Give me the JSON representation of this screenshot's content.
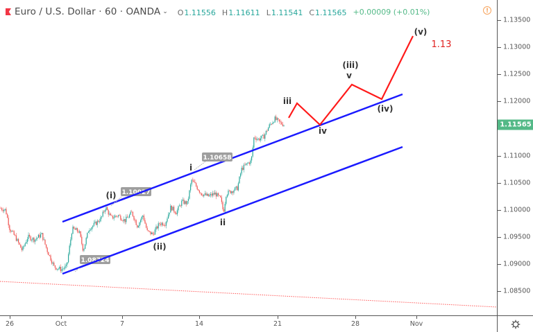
{
  "header": {
    "symbol_title": "Euro / U.S. Dollar · 60 · OANDA",
    "dropdown_icon": "chevron-down-icon",
    "ohlc": [
      {
        "key": "O",
        "value": "1.11556"
      },
      {
        "key": "H",
        "value": "1.11611"
      },
      {
        "key": "L",
        "value": "1.11541"
      },
      {
        "key": "C",
        "value": "1.11565"
      }
    ],
    "change": "+0.00009 (+0.01%)",
    "warning_icon": "alert-circle-icon"
  },
  "colors": {
    "up": "#26a69a",
    "down": "#ef5350",
    "channel": "#1a1aff",
    "projection": "#ff1a1a",
    "last_price_bg": "#53b987",
    "target_text": "#e0201f"
  },
  "price_axis": {
    "labels": [
      "1.13500",
      "1.13000",
      "1.12500",
      "1.12000",
      "1.11500",
      "1.11000",
      "1.10500",
      "1.10000",
      "1.09500",
      "1.09000",
      "1.08500"
    ],
    "last_price": "1.11565"
  },
  "time_axis": {
    "labels": [
      "26",
      "Oct",
      "7",
      "14",
      "21",
      "28",
      "Nov"
    ],
    "settings_icon": "gear-icon"
  },
  "annotations": {
    "price_tags": [
      "1.10027",
      "1.08724",
      "1.10658"
    ],
    "wave_labels": [
      "(i)",
      "(ii)",
      "i",
      "ii",
      "iii",
      "iv",
      "(iii)",
      "v",
      "(iv)",
      "(v)"
    ],
    "target": "1.13"
  },
  "chart_data": {
    "type": "line",
    "title": "Euro / U.S. Dollar · 60 · OANDA",
    "xlabel": "",
    "ylabel": "",
    "x_ticks": [
      "26",
      "Oct",
      "7",
      "14",
      "21",
      "28",
      "Nov"
    ],
    "ylim": [
      1.0815,
      1.137
    ],
    "grid": false,
    "legend_position": "top-left",
    "ohlc_last": {
      "open": 1.11556,
      "high": 1.11611,
      "low": 1.11541,
      "close": 1.11565,
      "change": 9e-05,
      "change_pct": 0.01
    },
    "series": [
      {
        "name": "EURUSD H1 price (approx. closes)",
        "x": [
          "Sep 25",
          "Sep 26",
          "Sep 27",
          "Sep 30",
          "Oct 1",
          "Oct 2",
          "Oct 3",
          "Oct 4",
          "Oct 7",
          "Oct 8",
          "Oct 9",
          "Oct 10",
          "Oct 11",
          "Oct 14",
          "Oct 15",
          "Oct 16",
          "Oct 17",
          "Oct 18",
          "Oct 21"
        ],
        "values": [
          1.1003,
          1.0943,
          1.0935,
          1.0905,
          1.088,
          1.0955,
          1.0965,
          1.1,
          1.0975,
          1.0955,
          1.0975,
          1.1025,
          1.1055,
          1.1025,
          1.101,
          1.099,
          1.1085,
          1.114,
          1.1157
        ]
      },
      {
        "name": "Upper channel line",
        "points": [
          {
            "x": "Oct 1",
            "y": 1.0975
          },
          {
            "x": "Oct 30",
            "y": 1.121
          }
        ]
      },
      {
        "name": "Lower channel line",
        "points": [
          {
            "x": "Oct 1",
            "y": 1.088
          },
          {
            "x": "Oct 30",
            "y": 1.1115
          }
        ]
      },
      {
        "name": "Projected wave path",
        "points": [
          {
            "x": "Oct 21",
            "y": 1.117
          },
          {
            "x": "Oct 22",
            "y": 1.1195
          },
          {
            "x": "Oct 24",
            "y": 1.1155
          },
          {
            "x": "Oct 27",
            "y": 1.123
          },
          {
            "x": "Oct 30",
            "y": 1.1205
          },
          {
            "x": "Nov 1",
            "y": 1.1318
          }
        ]
      },
      {
        "name": "Long-term trendline (dotted)",
        "points": [
          {
            "x": "Sep 25",
            "y": 1.0865
          },
          {
            "x": "Nov 6",
            "y": 1.0815
          }
        ]
      }
    ],
    "annotations": [
      {
        "text": "(i)",
        "x": "Oct 5",
        "y": 1.1005
      },
      {
        "text": "(ii)",
        "x": "Oct 8",
        "y": 1.095
      },
      {
        "text": "i",
        "x": "Oct 14",
        "y": 1.1066
      },
      {
        "text": "ii",
        "x": "Oct 16",
        "y": 1.099
      },
      {
        "text": "iii",
        "x": "Oct 21",
        "y": 1.118
      },
      {
        "text": "iv",
        "x": "Oct 24",
        "y": 1.1155
      },
      {
        "text": "(iii) v",
        "x": "Oct 27",
        "y": 1.123
      },
      {
        "text": "(iv)",
        "x": "Oct 30",
        "y": 1.1205
      },
      {
        "text": "(v)",
        "x": "Nov 1",
        "y": 1.1318
      },
      {
        "text": "1.13",
        "x": "Nov 2",
        "y": 1.13
      },
      {
        "text": "1.10027",
        "type": "price-tag"
      },
      {
        "text": "1.08724",
        "type": "price-tag"
      },
      {
        "text": "1.10658",
        "type": "price-tag"
      }
    ]
  }
}
